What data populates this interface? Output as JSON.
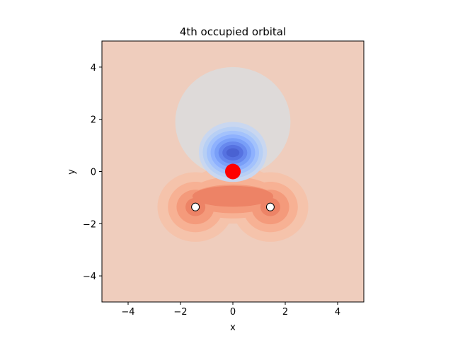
{
  "chart_data": {
    "type": "contour",
    "title": "4th occupied orbital",
    "xlabel": "x",
    "ylabel": "y",
    "xlim": [
      -5,
      5
    ],
    "ylim": [
      -5,
      5
    ],
    "x_ticks": [
      -4,
      -2,
      0,
      2,
      4
    ],
    "y_ticks": [
      -4,
      -2,
      0,
      2,
      4
    ],
    "colormap": "coolwarm",
    "background_color": "#efcdbd",
    "grid": false,
    "atoms": [
      {
        "name": "O",
        "x": 0.0,
        "y": 0.0,
        "color": "#ff0000"
      },
      {
        "name": "H",
        "x": -1.43,
        "y": -1.36,
        "color": "#ffffff"
      },
      {
        "name": "H",
        "x": 1.43,
        "y": -1.36,
        "color": "#ffffff"
      }
    ],
    "negative_lobe": {
      "center": [
        0.0,
        0.75
      ],
      "levels": [
        {
          "radius": [
            2.2,
            2.1
          ],
          "offset_y": 1.9,
          "color": "#dedad9"
        },
        {
          "radius": [
            1.3,
            1.15
          ],
          "offset_y": 0.75,
          "color": "#c9d7f0"
        },
        {
          "radius": [
            1.15,
            0.98
          ],
          "offset_y": 0.73,
          "color": "#b7cff5"
        },
        {
          "radius": [
            1.0,
            0.84
          ],
          "offset_y": 0.72,
          "color": "#a3c2fc"
        },
        {
          "radius": [
            0.85,
            0.7
          ],
          "offset_y": 0.72,
          "color": "#8eb1fe"
        },
        {
          "radius": [
            0.7,
            0.56
          ],
          "offset_y": 0.72,
          "color": "#799ff8"
        },
        {
          "radius": [
            0.55,
            0.43
          ],
          "offset_y": 0.72,
          "color": "#6788ee"
        },
        {
          "radius": [
            0.4,
            0.3
          ],
          "offset_y": 0.72,
          "color": "#5672e1"
        },
        {
          "radius": [
            0.25,
            0.17
          ],
          "offset_y": 0.72,
          "color": "#4a62d2"
        }
      ]
    },
    "positive_lobe_colors": [
      "#f5c3ab",
      "#f7b194",
      "#f49a7b",
      "#ed8366"
    ]
  }
}
